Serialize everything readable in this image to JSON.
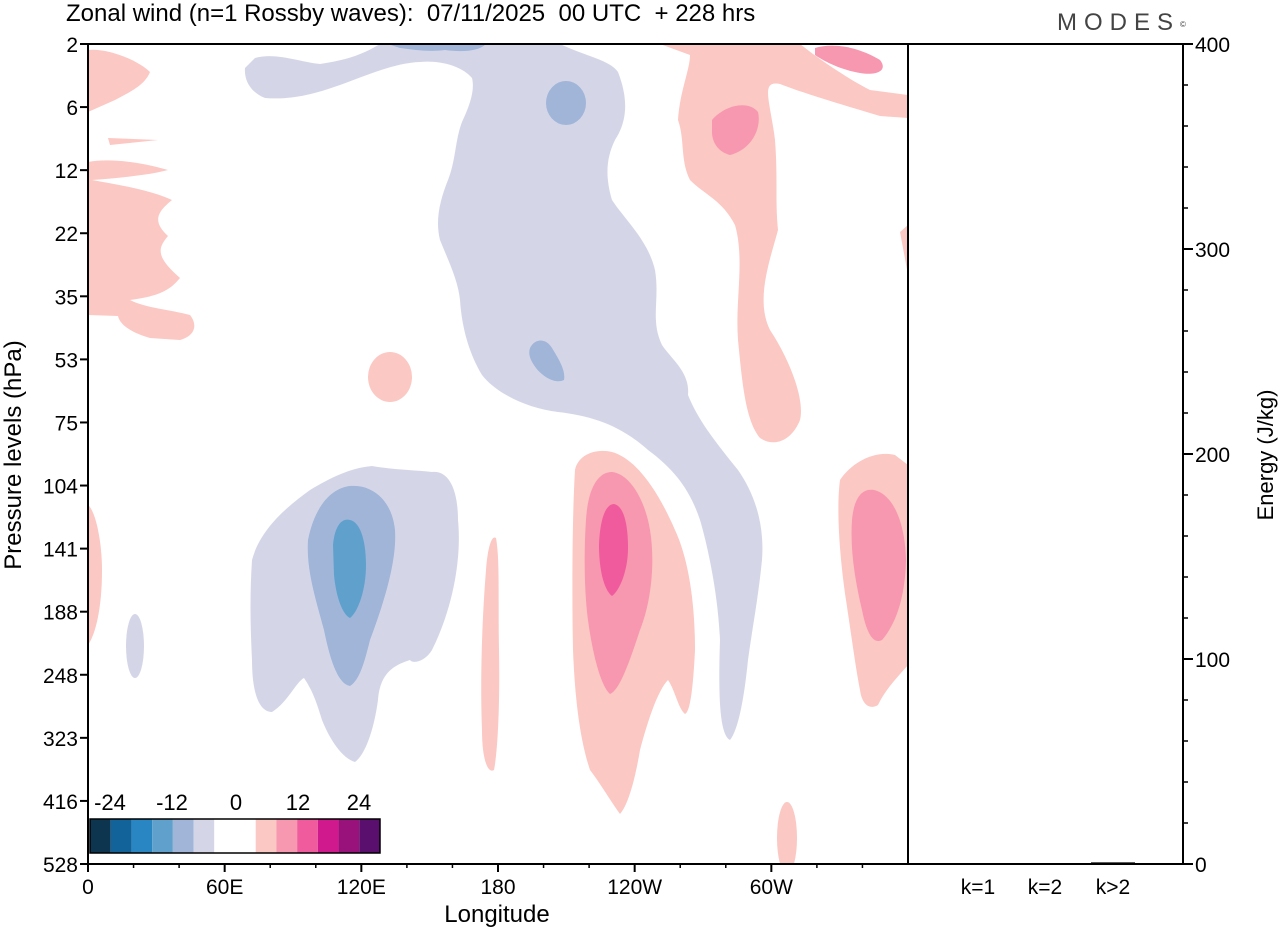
{
  "title": "Zonal wind (n=1 Rossby waves):  07/11/2025  00 UTC  + 228 hrs",
  "logo": "MODES",
  "logo_mark": "©",
  "chart_data": [
    {
      "type": "heatmap",
      "title": "Zonal wind (n=1 Rossby waves):  07/11/2025  00 UTC  + 228 hrs",
      "xlabel": "Longitude",
      "ylabel": "Pressure levels (hPa)",
      "x_ticks": [
        "0",
        "60E",
        "120E",
        "180",
        "120W",
        "60W"
      ],
      "y_ticks": [
        "2",
        "6",
        "12",
        "22",
        "35",
        "53",
        "75",
        "104",
        "141",
        "188",
        "248",
        "323",
        "416",
        "528"
      ],
      "colorbar": {
        "labels": [
          "-24",
          "-12",
          "0",
          "12",
          "24"
        ],
        "colors": [
          "#0d3550",
          "#11639a",
          "#2a86c2",
          "#5fa1cc",
          "#a0b5d8",
          "#d4d6e8",
          "#ffffff",
          "#ffffff",
          "#fbc8c3",
          "#f797b0",
          "#ef5b9c",
          "#d0198c",
          "#99117a",
          "#5a0e6d"
        ]
      },
      "regions": [
        {
          "sign": "positive",
          "levels": 1,
          "description": "upper left near 0E"
        },
        {
          "sign": "negative",
          "levels": 2,
          "description": "vertical band near 180-150W"
        },
        {
          "sign": "positive",
          "levels": 2,
          "description": "upper level near 60W"
        },
        {
          "sign": "negative",
          "levels": 3,
          "description": "lower troposphere core near 120E"
        },
        {
          "sign": "positive",
          "levels": 3,
          "description": "lower troposphere core near 115W"
        },
        {
          "sign": "positive",
          "levels": 2,
          "description": "lower troposphere near 20W"
        }
      ]
    },
    {
      "type": "bar",
      "title": "",
      "ylabel": "Energy (J/kg)",
      "categories": [
        "k=1",
        "k=2",
        "k>2"
      ],
      "values": [
        0.3,
        0.3,
        0.8
      ],
      "ylim": [
        0,
        400
      ],
      "y_ticks": [
        "0",
        "100",
        "200",
        "300",
        "400"
      ]
    }
  ]
}
